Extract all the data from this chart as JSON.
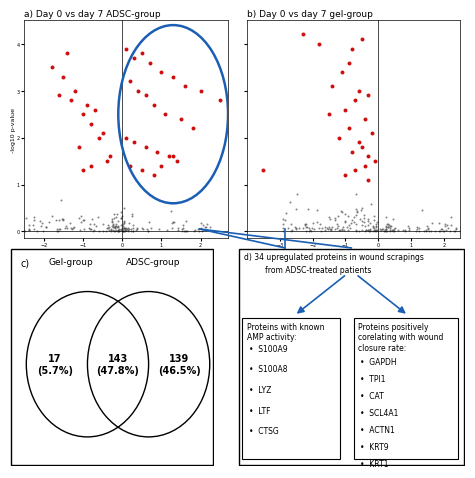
{
  "panel_a_title": "a) Day 0 vs day 7 ADSC-group",
  "panel_b_title": "b) Day 0 vs day 7 gel-group",
  "venn_left_label": "Gel-group",
  "venn_right_label": "ADSC-group",
  "venn_left_only": "17\n(5.7%)",
  "venn_center": "143\n(47.8%)",
  "venn_right_only": "139\n(46.5%)",
  "amp_title": "Proteins with known\nAMP activity:",
  "amp_items": [
    "S100A9",
    "S100A8",
    "LYZ",
    "LTF",
    "CTSG"
  ],
  "wound_title": "Proteins positively\ncorelating with wound\nclosure rate:",
  "wound_items": [
    "GAPDH",
    "TPI1",
    "CAT",
    "SCL4A1",
    "ACTN1",
    "KRT9",
    "KRT1"
  ],
  "bg_color": "#ffffff",
  "dark_dot_color": "#505050",
  "red_dot_color": "#cc0000",
  "circle_color": "#1a5fb4"
}
